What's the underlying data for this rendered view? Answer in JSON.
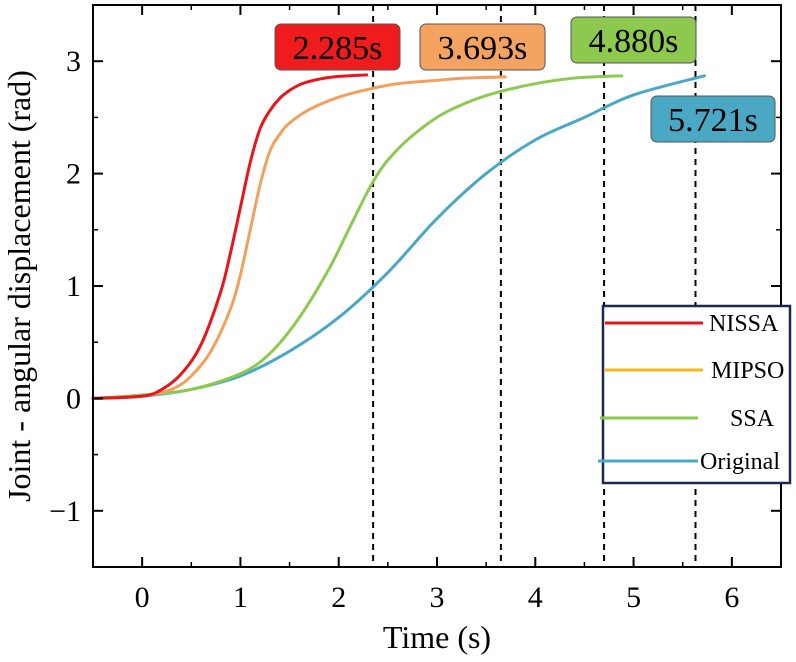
{
  "chart_data": {
    "type": "line",
    "xlabel": "Time (s)",
    "ylabel": "Joint - angular displacement (rad)",
    "xlim": [
      -0.5,
      6.5
    ],
    "ylim": [
      -1.5,
      3.5
    ],
    "xticks": [
      0,
      1,
      2,
      3,
      4,
      5,
      6
    ],
    "yticks": [
      -1,
      0,
      1,
      2,
      3
    ],
    "xtick_labels": [
      "0",
      "1",
      "2",
      "3",
      "4",
      "5",
      "6"
    ],
    "ytick_labels": [
      "−1",
      "0",
      "1",
      "2",
      "3"
    ],
    "grid": false,
    "legend_position": "right",
    "series": [
      {
        "name": "NISSA",
        "color": "#e8161b",
        "x": [
          -0.5,
          0,
          0.2,
          0.4,
          0.6,
          0.8,
          0.9,
          1.0,
          1.1,
          1.2,
          1.3,
          1.4,
          1.5,
          1.6,
          1.7,
          1.8,
          1.9,
          2.0,
          2.1,
          2.2,
          2.285
        ],
        "y": [
          0.0,
          0.02,
          0.08,
          0.22,
          0.48,
          0.95,
          1.3,
          1.7,
          2.1,
          2.4,
          2.56,
          2.67,
          2.74,
          2.79,
          2.82,
          2.84,
          2.855,
          2.865,
          2.87,
          2.875,
          2.878
        ]
      },
      {
        "name": "MIPSO",
        "color": "#f2a05c",
        "x": [
          -0.5,
          0,
          0.3,
          0.5,
          0.7,
          0.9,
          1.0,
          1.1,
          1.2,
          1.3,
          1.4,
          1.5,
          1.7,
          2.0,
          2.3,
          2.6,
          3.0,
          3.3,
          3.693
        ],
        "y": [
          0.0,
          0.02,
          0.08,
          0.2,
          0.42,
          0.8,
          1.1,
          1.5,
          1.9,
          2.2,
          2.35,
          2.45,
          2.57,
          2.68,
          2.75,
          2.8,
          2.83,
          2.85,
          2.86
        ]
      },
      {
        "name": "SSA",
        "color": "#8ec94f",
        "x": [
          -0.5,
          0,
          0.5,
          1.0,
          1.3,
          1.6,
          1.9,
          2.1,
          2.3,
          2.4,
          2.5,
          2.7,
          3.0,
          3.3,
          3.6,
          4.0,
          4.4,
          4.88
        ],
        "y": [
          0.0,
          0.03,
          0.08,
          0.22,
          0.4,
          0.72,
          1.15,
          1.5,
          1.85,
          2.0,
          2.12,
          2.3,
          2.5,
          2.63,
          2.72,
          2.8,
          2.85,
          2.87
        ]
      },
      {
        "name": "Original",
        "color": "#4aa8c4",
        "x": [
          -0.5,
          0,
          0.5,
          1.0,
          1.5,
          2.0,
          2.5,
          3.0,
          3.5,
          4.0,
          4.5,
          5.0,
          5.721
        ],
        "y": [
          0.0,
          0.02,
          0.08,
          0.2,
          0.42,
          0.72,
          1.12,
          1.6,
          2.0,
          2.3,
          2.5,
          2.7,
          2.87
        ]
      }
    ],
    "annotations": [
      {
        "text": "2.285s",
        "bg": "#ee1c1c",
        "line_x": 2.35
      },
      {
        "text": "3.693s",
        "bg": "#f4a460",
        "line_x": 3.65
      },
      {
        "text": "4.880s",
        "bg": "#8dc84f",
        "line_x": 4.7
      },
      {
        "text": "5.721s",
        "bg": "#4aa8c4",
        "line_x": 5.63
      }
    ],
    "legend": {
      "frame_color": "#1b2a4a",
      "entries": [
        "NISSA",
        "MIPSO",
        "SSA",
        "Original"
      ],
      "colors": [
        "#e8161b",
        "#f5b920",
        "#8ec94f",
        "#4aa8c4"
      ]
    }
  }
}
